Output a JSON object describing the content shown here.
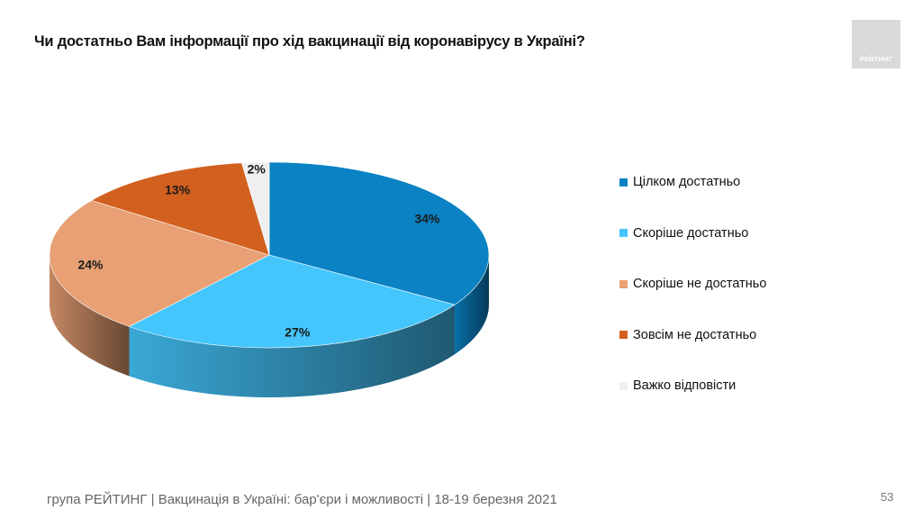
{
  "header": {
    "title": "Чи достатньо Вам інформації про хід вакцинації від коронавірусу в Україні?"
  },
  "logo": {
    "text": "РЕЙТИНГ"
  },
  "chart_data": {
    "type": "pie",
    "categories": [
      "Цілком достатньо",
      "Скоріше достатньо",
      "Скоріше не достатньо",
      "Зовсім не достатньо",
      "Важко відповісти"
    ],
    "values": [
      34,
      27,
      24,
      13,
      2
    ],
    "value_labels": [
      "34%",
      "27%",
      "24%",
      "13%",
      "2%"
    ],
    "colors": [
      "#0a82c3",
      "#44c6fc",
      "#e8a074",
      "#d2601f",
      "#efefef"
    ],
    "legend_position": "right",
    "style": "3d"
  },
  "footer": {
    "text": "група РЕЙТИНГ | Вакцинація в Україні: бар'єри і можливості | 18-19 березня 2021",
    "page_number": "53"
  }
}
